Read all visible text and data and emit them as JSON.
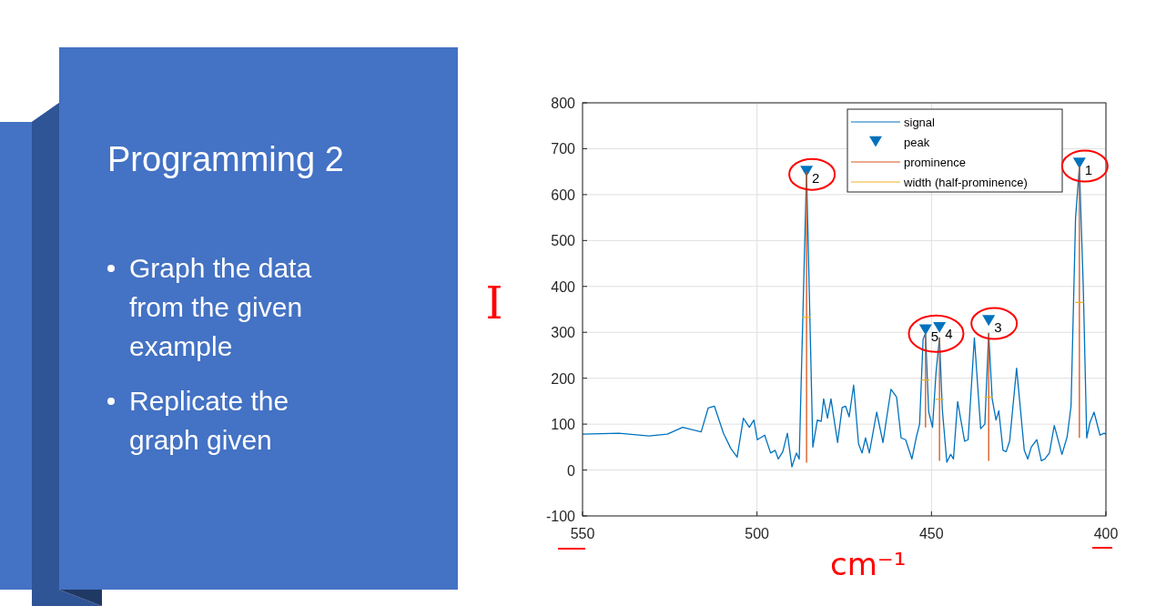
{
  "chart_data": {
    "type": "line",
    "title": "Programming 2",
    "xlabel": "cm⁻¹",
    "ylabel": "I",
    "annotations": [
      "Graph the data from the given example",
      "Replicate the graph given",
      {
        "text": "1",
        "x": 407.6,
        "y": 668
      },
      {
        "text": "2",
        "x": 485.8,
        "y": 650
      },
      {
        "text": "3",
        "x": 433.6,
        "y": 325
      },
      {
        "text": "4",
        "x": 447.7,
        "y": 310
      },
      {
        "text": "5",
        "x": 451.7,
        "y": 305
      }
    ],
    "xlim": [
      550,
      400
    ],
    "xticks": [
      550,
      500,
      450,
      400
    ],
    "ylim": [
      -100,
      800
    ],
    "yticks": [
      -100,
      0,
      100,
      200,
      300,
      400,
      500,
      600,
      700,
      800
    ],
    "grid": true,
    "legend": "top right",
    "series": [
      {
        "name": "signal",
        "color": "#0072bd",
        "x": [
          550,
          539.6,
          531,
          525.7,
          521.3,
          516,
          514,
          512.2,
          509.6,
          507.5,
          505.7,
          503.9,
          502.2,
          500.9,
          499.9,
          497.8,
          496.1,
          494.8,
          493.9,
          492.6,
          491.3,
          490,
          488.7,
          487.9,
          485.8,
          484,
          482.7,
          481.6,
          480.9,
          479.8,
          478.8,
          476.9,
          475.6,
          474.6,
          473.6,
          472.3,
          470.9,
          469.9,
          468.9,
          467.8,
          465.7,
          463.9,
          461.6,
          460,
          458.7,
          457.4,
          455.6,
          454.3,
          453.4,
          452.4,
          451.7,
          450.8,
          449.7,
          448.7,
          447.7,
          446.9,
          445.6,
          444.5,
          443.7,
          442.5,
          440.5,
          439.5,
          437.7,
          435.9,
          434.7,
          433.6,
          432.6,
          431.5,
          430.7,
          429.5,
          428.6,
          427.6,
          425.6,
          423.4,
          422.4,
          421.4,
          419.8,
          418.5,
          417.5,
          416.2,
          414.8,
          412.6,
          411.1,
          410,
          408.7,
          407.6,
          406.5,
          405.5,
          404.6,
          403.4,
          401.7,
          400.5,
          400
        ],
        "values": [
          78,
          80,
          74,
          78,
          93,
          83,
          135,
          139,
          80,
          47,
          28,
          113,
          93,
          109,
          66,
          76,
          37,
          43,
          24,
          40,
          80,
          7,
          37,
          24,
          650,
          50,
          109,
          106,
          155,
          113,
          155,
          60,
          136,
          139,
          116,
          185,
          57,
          37,
          70,
          37,
          126,
          60,
          176,
          159,
          70,
          66,
          24,
          73,
          100,
          285,
          298,
          127,
          93,
          212,
          288,
          133,
          17,
          34,
          24,
          149,
          63,
          66,
          288,
          90,
          100,
          298,
          155,
          109,
          129,
          43,
          40,
          63,
          222,
          43,
          24,
          50,
          66,
          20,
          24,
          37,
          97,
          34,
          73,
          139,
          550,
          661,
          400,
          70,
          103,
          126,
          76,
          80,
          78
        ]
      },
      {
        "name": "peak",
        "type": "scatter",
        "color": "#0072bd",
        "marker": "triangle",
        "x": [
          407.6,
          485.8,
          433.6,
          447.7,
          451.7
        ],
        "values": [
          668,
          650,
          325,
          310,
          305
        ]
      },
      {
        "name": "prominence",
        "color": "#d95319",
        "x": [
          407.6,
          407.6,
          null,
          485.8,
          485.8,
          null,
          433.6,
          433.6,
          null,
          447.7,
          447.7,
          null,
          451.7,
          451.7
        ],
        "values": [
          661,
          70,
          null,
          650,
          16,
          null,
          298,
          20,
          null,
          288,
          20,
          null,
          298,
          93
        ]
      },
      {
        "name": "width (half-prominence)",
        "color": "#edb120",
        "x": [
          408.8,
          406.4,
          null,
          487,
          484.6,
          null,
          434.8,
          432.4,
          null,
          448.9,
          446.5,
          null,
          452.9,
          450.5
        ],
        "values": [
          365,
          365,
          null,
          333,
          333,
          null,
          159,
          159,
          null,
          154,
          154,
          null,
          196,
          196
        ]
      }
    ]
  }
}
